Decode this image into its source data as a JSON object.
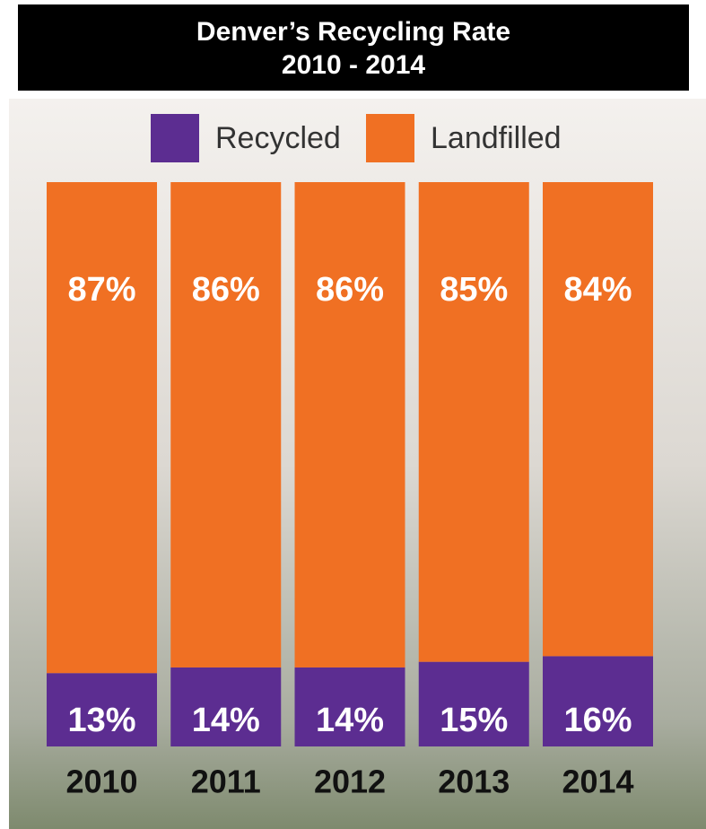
{
  "chart_data": {
    "type": "stacked-bar",
    "title": "Denver’s Recycling Rate",
    "subtitle": "2010 - 2014",
    "categories": [
      "2010",
      "2011",
      "2012",
      "2013",
      "2014"
    ],
    "ylim": [
      0,
      100
    ],
    "series": [
      {
        "name": "Recycled",
        "color": "#5c2d91",
        "values": [
          13,
          14,
          14,
          15,
          16
        ],
        "value_labels": [
          "13%",
          "14%",
          "14%",
          "15%",
          "16%"
        ]
      },
      {
        "name": "Landfilled",
        "color": "#f07023",
        "values": [
          87,
          86,
          86,
          85,
          84
        ],
        "value_labels": [
          "87%",
          "86%",
          "86%",
          "85%",
          "84%"
        ]
      }
    ]
  }
}
